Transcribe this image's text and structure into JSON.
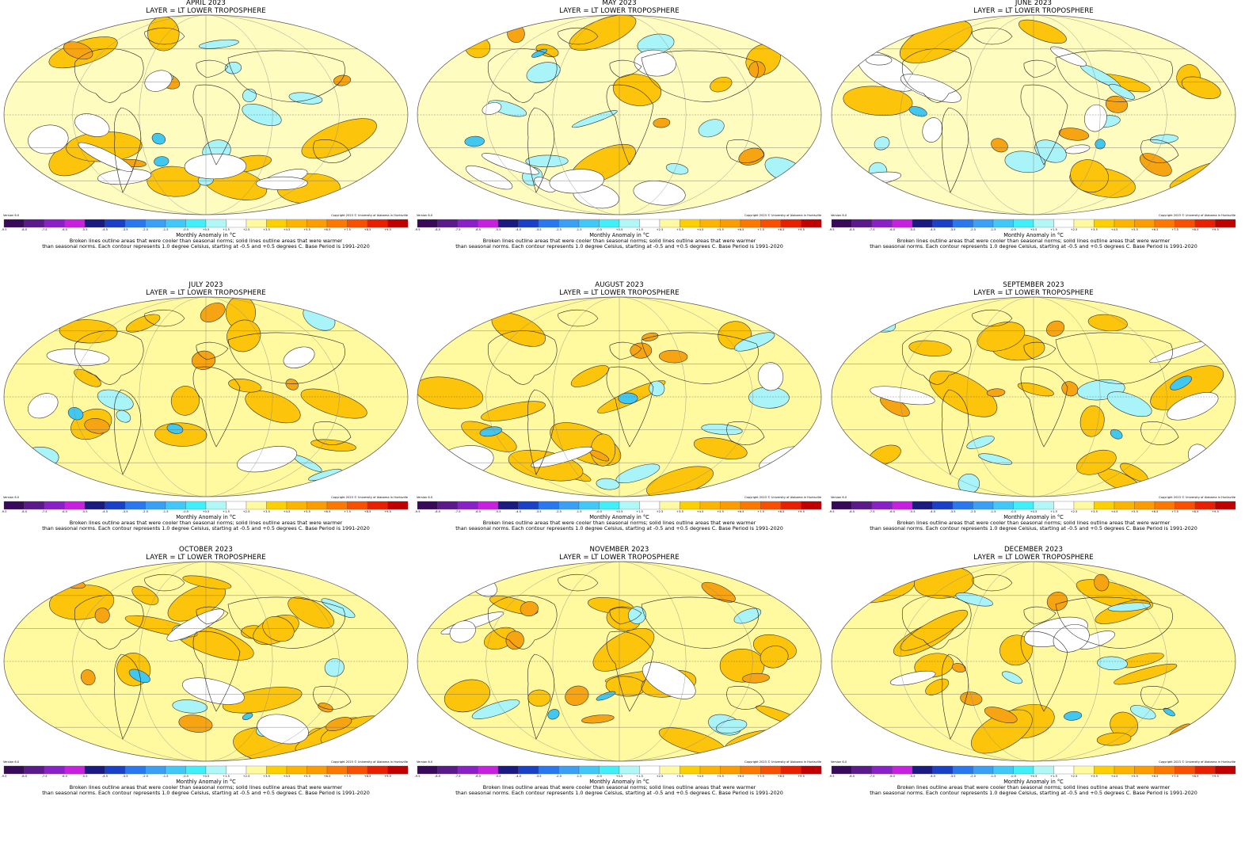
{
  "layer_label": "LAYER = LT LOWER TROPOSPHERE",
  "version": "Version 6.0",
  "copyright": "Copyright 2023 © University of Alabama in Huntsville",
  "unit_label": "Monthly Anomaly in °C",
  "caption_line1": "Broken lines outline areas that were cooler than seasonal norms; solid lines outline areas that were warmer",
  "caption_line2": "than seasonal norms. Each contour represents 1.0 degree Celsius, starting at -0.5 and +0.5 degrees C. Base Period is 1991-2020",
  "colorbar": {
    "ticks": [
      "-9.5",
      "-8.5",
      "-7.5",
      "-6.5",
      "-5.5",
      "-4.5",
      "-3.5",
      "-2.5",
      "-1.5",
      "-0.5",
      "+0.5",
      "+1.5",
      "+2.5",
      "+3.5",
      "+4.5",
      "+5.5",
      "+6.5",
      "+7.5",
      "+8.5",
      "+9.5"
    ],
    "colors": [
      "#3a0a5a",
      "#5a1a8a",
      "#8a20c8",
      "#c820e0",
      "#1a1a80",
      "#1a40c8",
      "#2a78f0",
      "#3aa0f5",
      "#40c8f8",
      "#40f0f8",
      "#b0f8f8",
      "#ffffff",
      "#fffaa0",
      "#fcd000",
      "#fcb400",
      "#fc9c00",
      "#fc7800",
      "#f85000",
      "#e82000",
      "#c00000"
    ]
  },
  "maps": [
    {
      "title": "APRIL 2023"
    },
    {
      "title": "MAY 2023"
    },
    {
      "title": "JUNE 2023"
    },
    {
      "title": "JULY 2023"
    },
    {
      "title": "AUGUST 2023"
    },
    {
      "title": "SEPTEMBER 2023"
    },
    {
      "title": "OCTOBER 2023"
    },
    {
      "title": "NOVEMBER 2023"
    },
    {
      "title": "DECEMBER 2023"
    }
  ]
}
